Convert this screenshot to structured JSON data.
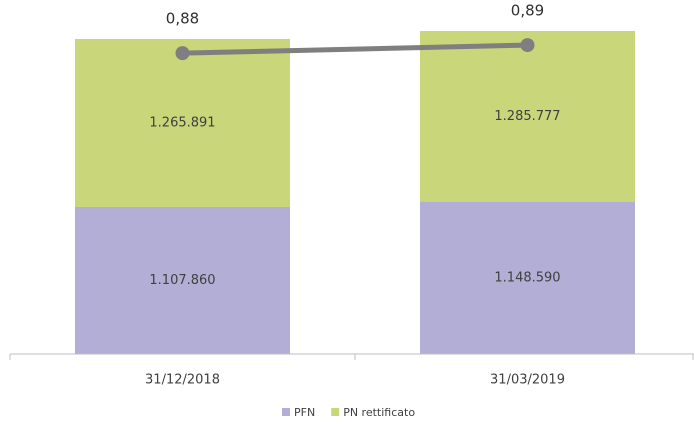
{
  "chart_data": {
    "type": "bar",
    "categories": [
      "31/12/2018",
      "31/03/2019"
    ],
    "stacked": true,
    "ylim": [
      150000,
      2750000
    ],
    "y2lim": [
      0.505,
      0.935
    ],
    "series": [
      {
        "name": "PFN",
        "color": "#b2aed6",
        "values": [
          1107860,
          1148590
        ],
        "value_labels": [
          "1.107.860",
          "1.148.590"
        ]
      },
      {
        "name": "PN rettificato",
        "color": "#c9d67a",
        "values": [
          1265891,
          1285777
        ],
        "value_labels": [
          "1.265.891",
          "1.285.777"
        ]
      },
      {
        "type": "line",
        "axis": "y2",
        "color": "#7f7f7f",
        "values": [
          0.88,
          0.89
        ],
        "value_labels": [
          "0,88",
          "0,89"
        ]
      }
    ]
  }
}
